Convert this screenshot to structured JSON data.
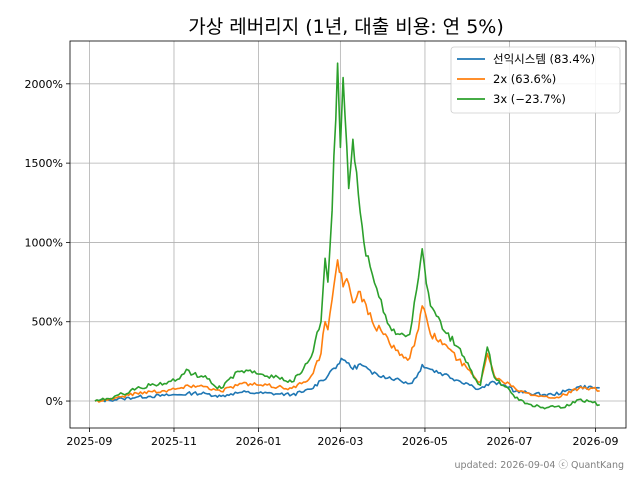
{
  "chart_data": {
    "type": "line",
    "title": "가상 레버리지 (1년, 대출 비용: 연 5%)",
    "xlabel": "",
    "ylabel": "",
    "x_tick_labels": [
      "2025-09",
      "2025-11",
      "2026-01",
      "2026-03",
      "2026-05",
      "2026-07",
      "2026-09"
    ],
    "y_ticks": [
      0,
      500,
      1000,
      1500,
      2000
    ],
    "y_tick_labels": [
      "0%",
      "500%",
      "1000%",
      "1500%",
      "2000%"
    ],
    "xlim": [
      "2025-08-18",
      "2026-09-23"
    ],
    "ylim": [
      -170,
      2270
    ],
    "grid": true,
    "legend_position": "top-right",
    "footer": "updated: 2026-09-04 ⓒ QuantKang",
    "series": [
      {
        "name": "선익시스템 (83.4%)",
        "color": "#1f77b4",
        "points": [
          [
            "2025-09-05",
            0
          ],
          [
            "2025-09-15",
            5
          ],
          [
            "2025-09-25",
            15
          ],
          [
            "2025-10-05",
            25
          ],
          [
            "2025-10-15",
            30
          ],
          [
            "2025-10-25",
            35
          ],
          [
            "2025-11-05",
            40
          ],
          [
            "2025-11-15",
            50
          ],
          [
            "2025-11-25",
            45
          ],
          [
            "2025-12-01",
            35
          ],
          [
            "2025-12-05",
            30
          ],
          [
            "2025-12-12",
            45
          ],
          [
            "2025-12-20",
            55
          ],
          [
            "2026-01-01",
            50
          ],
          [
            "2026-01-15",
            45
          ],
          [
            "2026-01-25",
            40
          ],
          [
            "2026-02-01",
            55
          ],
          [
            "2026-02-08",
            75
          ],
          [
            "2026-02-15",
            130
          ],
          [
            "2026-02-20",
            160
          ],
          [
            "2026-02-23",
            200
          ],
          [
            "2026-02-27",
            230
          ],
          [
            "2026-03-03",
            260
          ],
          [
            "2026-03-07",
            240
          ],
          [
            "2026-03-10",
            200
          ],
          [
            "2026-03-14",
            230
          ],
          [
            "2026-03-18",
            220
          ],
          [
            "2026-03-24",
            170
          ],
          [
            "2026-04-01",
            160
          ],
          [
            "2026-04-10",
            140
          ],
          [
            "2026-04-20",
            110
          ],
          [
            "2026-04-25",
            150
          ],
          [
            "2026-04-29",
            230
          ],
          [
            "2026-05-05",
            200
          ],
          [
            "2026-05-15",
            170
          ],
          [
            "2026-05-25",
            130
          ],
          [
            "2026-06-01",
            110
          ],
          [
            "2026-06-05",
            90
          ],
          [
            "2026-06-10",
            80
          ],
          [
            "2026-06-20",
            120
          ],
          [
            "2026-06-25",
            100
          ],
          [
            "2026-07-01",
            90
          ],
          [
            "2026-07-05",
            60
          ],
          [
            "2026-07-15",
            50
          ],
          [
            "2026-07-25",
            40
          ],
          [
            "2026-08-01",
            40
          ],
          [
            "2026-08-10",
            60
          ],
          [
            "2026-08-20",
            90
          ],
          [
            "2026-08-30",
            85
          ],
          [
            "2026-09-04",
            83.4
          ]
        ]
      },
      {
        "name": "2x (63.6%)",
        "color": "#ff7f0e",
        "points": [
          [
            "2025-09-05",
            0
          ],
          [
            "2025-09-15",
            10
          ],
          [
            "2025-09-25",
            30
          ],
          [
            "2025-10-05",
            50
          ],
          [
            "2025-10-15",
            60
          ],
          [
            "2025-10-25",
            65
          ],
          [
            "2025-11-05",
            80
          ],
          [
            "2025-11-15",
            100
          ],
          [
            "2025-11-25",
            90
          ],
          [
            "2025-12-01",
            70
          ],
          [
            "2025-12-05",
            60
          ],
          [
            "2025-12-12",
            90
          ],
          [
            "2025-12-20",
            110
          ],
          [
            "2026-01-01",
            100
          ],
          [
            "2026-01-15",
            90
          ],
          [
            "2026-01-25",
            80
          ],
          [
            "2026-02-01",
            110
          ],
          [
            "2026-02-08",
            160
          ],
          [
            "2026-02-15",
            300
          ],
          [
            "2026-02-18",
            500
          ],
          [
            "2026-02-20",
            450
          ],
          [
            "2026-02-23",
            640
          ],
          [
            "2026-02-27",
            890
          ],
          [
            "2026-03-03",
            720
          ],
          [
            "2026-03-07",
            740
          ],
          [
            "2026-03-10",
            620
          ],
          [
            "2026-03-14",
            690
          ],
          [
            "2026-03-18",
            640
          ],
          [
            "2026-03-24",
            500
          ],
          [
            "2026-04-01",
            420
          ],
          [
            "2026-04-10",
            320
          ],
          [
            "2026-04-20",
            270
          ],
          [
            "2026-04-25",
            420
          ],
          [
            "2026-04-29",
            600
          ],
          [
            "2026-05-05",
            420
          ],
          [
            "2026-05-15",
            360
          ],
          [
            "2026-05-25",
            260
          ],
          [
            "2026-06-01",
            200
          ],
          [
            "2026-06-05",
            160
          ],
          [
            "2026-06-10",
            120
          ],
          [
            "2026-06-15",
            300
          ],
          [
            "2026-06-20",
            160
          ],
          [
            "2026-06-25",
            130
          ],
          [
            "2026-07-01",
            110
          ],
          [
            "2026-07-05",
            80
          ],
          [
            "2026-07-15",
            50
          ],
          [
            "2026-07-25",
            30
          ],
          [
            "2026-08-01",
            20
          ],
          [
            "2026-08-10",
            40
          ],
          [
            "2026-08-20",
            80
          ],
          [
            "2026-08-30",
            80
          ],
          [
            "2026-09-04",
            63.6
          ]
        ]
      },
      {
        "name": "3x (−23.7%)",
        "color": "#2ca02c",
        "points": [
          [
            "2025-09-05",
            0
          ],
          [
            "2025-09-15",
            15
          ],
          [
            "2025-09-25",
            45
          ],
          [
            "2025-10-05",
            80
          ],
          [
            "2025-10-15",
            100
          ],
          [
            "2025-10-25",
            110
          ],
          [
            "2025-11-05",
            140
          ],
          [
            "2025-11-10",
            200
          ],
          [
            "2025-11-15",
            170
          ],
          [
            "2025-11-25",
            140
          ],
          [
            "2025-12-01",
            90
          ],
          [
            "2025-12-05",
            80
          ],
          [
            "2025-12-12",
            150
          ],
          [
            "2025-12-20",
            190
          ],
          [
            "2026-01-01",
            170
          ],
          [
            "2026-01-15",
            150
          ],
          [
            "2026-01-25",
            120
          ],
          [
            "2026-02-01",
            180
          ],
          [
            "2026-02-08",
            280
          ],
          [
            "2026-02-15",
            500
          ],
          [
            "2026-02-18",
            900
          ],
          [
            "2026-02-20",
            750
          ],
          [
            "2026-02-23",
            1200
          ],
          [
            "2026-02-27",
            2130
          ],
          [
            "2026-03-01",
            1600
          ],
          [
            "2026-03-03",
            2040
          ],
          [
            "2026-03-07",
            1340
          ],
          [
            "2026-03-10",
            1650
          ],
          [
            "2026-03-14",
            1300
          ],
          [
            "2026-03-18",
            1000
          ],
          [
            "2026-03-24",
            800
          ],
          [
            "2026-04-01",
            560
          ],
          [
            "2026-04-10",
            420
          ],
          [
            "2026-04-20",
            420
          ],
          [
            "2026-04-25",
            700
          ],
          [
            "2026-04-29",
            960
          ],
          [
            "2026-05-05",
            600
          ],
          [
            "2026-05-15",
            440
          ],
          [
            "2026-05-25",
            340
          ],
          [
            "2026-06-01",
            240
          ],
          [
            "2026-06-05",
            150
          ],
          [
            "2026-06-10",
            100
          ],
          [
            "2026-06-15",
            340
          ],
          [
            "2026-06-20",
            150
          ],
          [
            "2026-06-25",
            100
          ],
          [
            "2026-07-01",
            70
          ],
          [
            "2026-07-05",
            20
          ],
          [
            "2026-07-15",
            -20
          ],
          [
            "2026-07-25",
            -40
          ],
          [
            "2026-08-01",
            -30
          ],
          [
            "2026-08-10",
            -40
          ],
          [
            "2026-08-20",
            10
          ],
          [
            "2026-08-30",
            -10
          ],
          [
            "2026-09-04",
            -23.7
          ]
        ]
      }
    ]
  }
}
